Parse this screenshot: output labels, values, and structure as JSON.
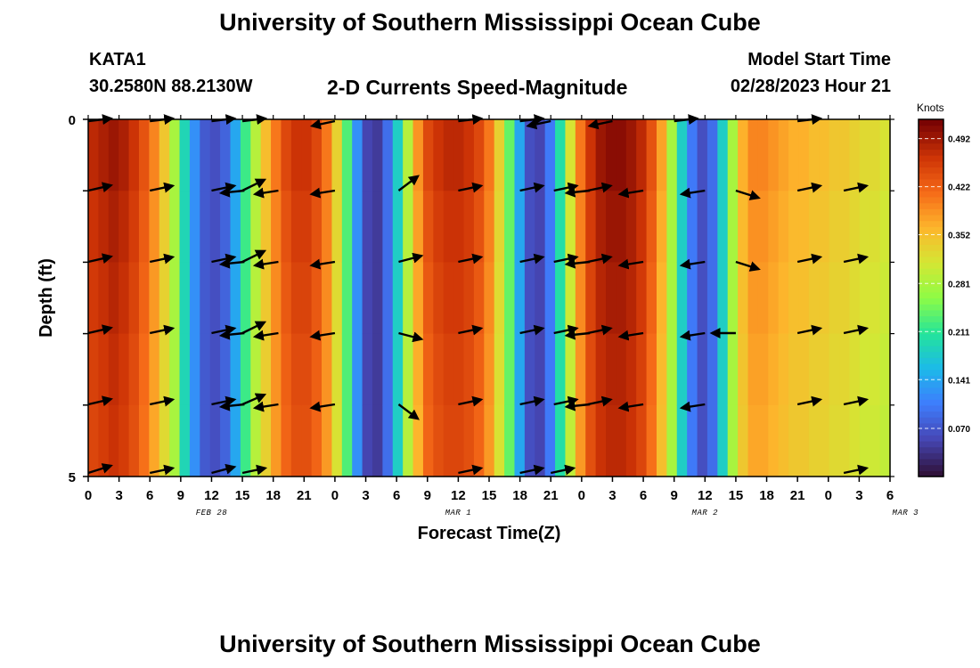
{
  "page": {
    "title": "University of Southern Mississippi Ocean Cube",
    "footer_title": "University of Southern Mississippi Ocean Cube",
    "station": "KATA1",
    "coords": "30.2580N  88.2130W",
    "plot_title": "2-D Currents Speed-Magnitude",
    "model_start_label": "Model Start Time",
    "model_start_value": "02/28/2023 Hour 21"
  },
  "chart_data": {
    "type": "heatmap",
    "title": "2-D Currents Speed-Magnitude",
    "xlabel": "Forecast Time(Z)",
    "ylabel": "Depth (ft)",
    "y_ticks": [
      {
        "value": 0,
        "label": "0"
      },
      {
        "value": 5,
        "label": "5"
      }
    ],
    "x_ticks": [
      "0",
      "3",
      "6",
      "9",
      "12",
      "15",
      "18",
      "21",
      "0",
      "3",
      "6",
      "9",
      "12",
      "15",
      "18",
      "21",
      "0",
      "3",
      "6",
      "9",
      "12",
      "15",
      "18",
      "21",
      "0",
      "3",
      "6"
    ],
    "date_labels": [
      {
        "tick_index": 4,
        "text": "FEB 28"
      },
      {
        "tick_index": 12,
        "text": "MAR 1"
      },
      {
        "tick_index": 20,
        "text": "MAR 2"
      },
      {
        "tick_index": 26.5,
        "text": "MAR 3"
      }
    ],
    "x_range_hours": [
      0,
      78
    ],
    "colorbar": {
      "units": "Knots",
      "range": [
        0.0,
        0.52
      ],
      "ticks": [
        "0.070",
        "0.141",
        "0.211",
        "0.281",
        "0.352",
        "0.422",
        "0.492"
      ]
    },
    "speed_knots_by_hour": [
      0.47,
      0.48,
      0.49,
      0.48,
      0.46,
      0.43,
      0.39,
      0.34,
      0.28,
      0.19,
      0.12,
      0.07,
      0.06,
      0.08,
      0.14,
      0.22,
      0.29,
      0.35,
      0.4,
      0.44,
      0.46,
      0.46,
      0.44,
      0.4,
      0.33,
      0.23,
      0.12,
      0.05,
      0.04,
      0.09,
      0.18,
      0.29,
      0.38,
      0.44,
      0.46,
      0.47,
      0.47,
      0.46,
      0.44,
      0.4,
      0.33,
      0.24,
      0.14,
      0.06,
      0.05,
      0.1,
      0.2,
      0.31,
      0.4,
      0.46,
      0.49,
      0.5,
      0.5,
      0.49,
      0.47,
      0.43,
      0.37,
      0.28,
      0.18,
      0.1,
      0.06,
      0.09,
      0.18,
      0.28,
      0.36,
      0.39,
      0.39,
      0.38,
      0.37,
      0.36,
      0.36,
      0.35,
      0.35,
      0.34,
      0.34,
      0.33,
      0.32,
      0.32,
      0.31
    ],
    "vector_rows": [
      {
        "depth_value": 0,
        "vectors": [
          {
            "hour": 0,
            "u": 0.95,
            "v": 0.2
          },
          {
            "hour": 6,
            "u": 0.95,
            "v": 0.18
          },
          {
            "hour": 12,
            "u": 0.95,
            "v": 0.18
          },
          {
            "hour": 15,
            "u": 0.95,
            "v": 0.2
          },
          {
            "hour": 24,
            "u": -0.95,
            "v": -0.2
          },
          {
            "hour": 36,
            "u": 0.95,
            "v": 0.2
          },
          {
            "hour": 42,
            "u": 0.95,
            "v": 0.2
          },
          {
            "hour": 45,
            "u": -0.95,
            "v": -0.2
          },
          {
            "hour": 51,
            "u": -0.95,
            "v": -0.2
          },
          {
            "hour": 57,
            "u": 0.95,
            "v": 0.2
          },
          {
            "hour": 69,
            "u": 0.95,
            "v": 0.2
          }
        ]
      },
      {
        "depth_value": 1,
        "vectors": [
          {
            "hour": 0,
            "u": 0.95,
            "v": 0.22
          },
          {
            "hour": 6,
            "u": 0.95,
            "v": 0.2
          },
          {
            "hour": 12,
            "u": 0.95,
            "v": 0.2
          },
          {
            "hour": 15,
            "u": 0.92,
            "v": 0.45
          },
          {
            "hour": 15.2,
            "u": -0.97,
            "v": -0.1
          },
          {
            "hour": 18.5,
            "u": -0.97,
            "v": -0.15
          },
          {
            "hour": 24,
            "u": -0.97,
            "v": -0.15
          },
          {
            "hour": 30.2,
            "u": 0.8,
            "v": 0.6
          },
          {
            "hour": 36,
            "u": 0.95,
            "v": 0.2
          },
          {
            "hour": 42,
            "u": 0.95,
            "v": 0.2
          },
          {
            "hour": 45.3,
            "u": 0.95,
            "v": 0.2
          },
          {
            "hour": 48.6,
            "u": 0.95,
            "v": 0.2
          },
          {
            "hour": 48.8,
            "u": -0.97,
            "v": -0.1
          },
          {
            "hour": 54,
            "u": -0.97,
            "v": -0.15
          },
          {
            "hour": 60,
            "u": -0.97,
            "v": -0.15
          },
          {
            "hour": 63,
            "u": 0.95,
            "v": -0.3
          },
          {
            "hour": 69,
            "u": 0.95,
            "v": 0.2
          },
          {
            "hour": 73.5,
            "u": 0.95,
            "v": 0.2
          }
        ]
      },
      {
        "depth_value": 2,
        "vectors": [
          {
            "hour": 0,
            "u": 0.95,
            "v": 0.22
          },
          {
            "hour": 6,
            "u": 0.95,
            "v": 0.2
          },
          {
            "hour": 12,
            "u": 0.95,
            "v": 0.2
          },
          {
            "hour": 15,
            "u": 0.92,
            "v": 0.45
          },
          {
            "hour": 15.2,
            "u": -0.97,
            "v": -0.1
          },
          {
            "hour": 18.5,
            "u": -0.97,
            "v": -0.15
          },
          {
            "hour": 24,
            "u": -0.97,
            "v": -0.15
          },
          {
            "hour": 30.2,
            "u": 0.95,
            "v": 0.25
          },
          {
            "hour": 36,
            "u": 0.95,
            "v": 0.2
          },
          {
            "hour": 42,
            "u": 0.95,
            "v": 0.2
          },
          {
            "hour": 45.3,
            "u": 0.95,
            "v": 0.2
          },
          {
            "hour": 48.6,
            "u": 0.95,
            "v": 0.2
          },
          {
            "hour": 48.8,
            "u": -0.97,
            "v": -0.1
          },
          {
            "hour": 54,
            "u": -0.97,
            "v": -0.15
          },
          {
            "hour": 60,
            "u": -0.97,
            "v": -0.15
          },
          {
            "hour": 63,
            "u": 0.95,
            "v": -0.3
          },
          {
            "hour": 69,
            "u": 0.95,
            "v": 0.2
          },
          {
            "hour": 73.5,
            "u": 0.95,
            "v": 0.2
          }
        ]
      },
      {
        "depth_value": 3,
        "vectors": [
          {
            "hour": 0,
            "u": 0.95,
            "v": 0.22
          },
          {
            "hour": 6,
            "u": 0.95,
            "v": 0.2
          },
          {
            "hour": 12,
            "u": 0.95,
            "v": 0.2
          },
          {
            "hour": 15,
            "u": 0.92,
            "v": 0.45
          },
          {
            "hour": 15.2,
            "u": -0.97,
            "v": -0.1
          },
          {
            "hour": 18.5,
            "u": -0.97,
            "v": -0.15
          },
          {
            "hour": 24,
            "u": -0.97,
            "v": -0.15
          },
          {
            "hour": 30.2,
            "u": 0.95,
            "v": -0.25
          },
          {
            "hour": 36,
            "u": 0.95,
            "v": 0.2
          },
          {
            "hour": 42,
            "u": 0.95,
            "v": 0.2
          },
          {
            "hour": 45.3,
            "u": 0.95,
            "v": 0.2
          },
          {
            "hour": 48.6,
            "u": 0.95,
            "v": 0.2
          },
          {
            "hour": 48.8,
            "u": -0.97,
            "v": -0.1
          },
          {
            "hour": 54,
            "u": -0.97,
            "v": -0.15
          },
          {
            "hour": 60,
            "u": -0.97,
            "v": -0.15
          },
          {
            "hour": 63,
            "u": -1.0,
            "v": 0.0
          },
          {
            "hour": 69,
            "u": 0.95,
            "v": 0.2
          },
          {
            "hour": 73.5,
            "u": 0.95,
            "v": 0.2
          }
        ]
      },
      {
        "depth_value": 4,
        "vectors": [
          {
            "hour": 0,
            "u": 0.95,
            "v": 0.22
          },
          {
            "hour": 6,
            "u": 0.95,
            "v": 0.2
          },
          {
            "hour": 12,
            "u": 0.95,
            "v": 0.2
          },
          {
            "hour": 15,
            "u": 0.92,
            "v": 0.4
          },
          {
            "hour": 15.2,
            "u": -0.97,
            "v": -0.1
          },
          {
            "hour": 18.5,
            "u": -0.97,
            "v": -0.15
          },
          {
            "hour": 24,
            "u": -0.97,
            "v": -0.15
          },
          {
            "hour": 30.2,
            "u": 0.8,
            "v": -0.6
          },
          {
            "hour": 36,
            "u": 0.95,
            "v": 0.2
          },
          {
            "hour": 42,
            "u": 0.95,
            "v": 0.2
          },
          {
            "hour": 45.3,
            "u": 0.95,
            "v": 0.2
          },
          {
            "hour": 48.6,
            "u": 0.95,
            "v": 0.2
          },
          {
            "hour": 48.8,
            "u": -0.97,
            "v": -0.1
          },
          {
            "hour": 54,
            "u": -0.97,
            "v": -0.15
          },
          {
            "hour": 60,
            "u": -0.97,
            "v": -0.15
          },
          {
            "hour": 69,
            "u": 0.95,
            "v": 0.2
          },
          {
            "hour": 73.5,
            "u": 0.95,
            "v": 0.2
          }
        ]
      },
      {
        "depth_value": 5,
        "vectors": [
          {
            "hour": 0,
            "u": 0.95,
            "v": 0.3
          },
          {
            "hour": 6,
            "u": 0.95,
            "v": 0.2
          },
          {
            "hour": 12,
            "u": 0.95,
            "v": 0.25
          },
          {
            "hour": 15,
            "u": 0.95,
            "v": 0.2
          },
          {
            "hour": 36,
            "u": 0.95,
            "v": 0.2
          },
          {
            "hour": 42,
            "u": 0.95,
            "v": 0.2
          },
          {
            "hour": 45,
            "u": 0.95,
            "v": 0.2
          },
          {
            "hour": 73.5,
            "u": 0.95,
            "v": 0.2
          }
        ]
      }
    ]
  }
}
